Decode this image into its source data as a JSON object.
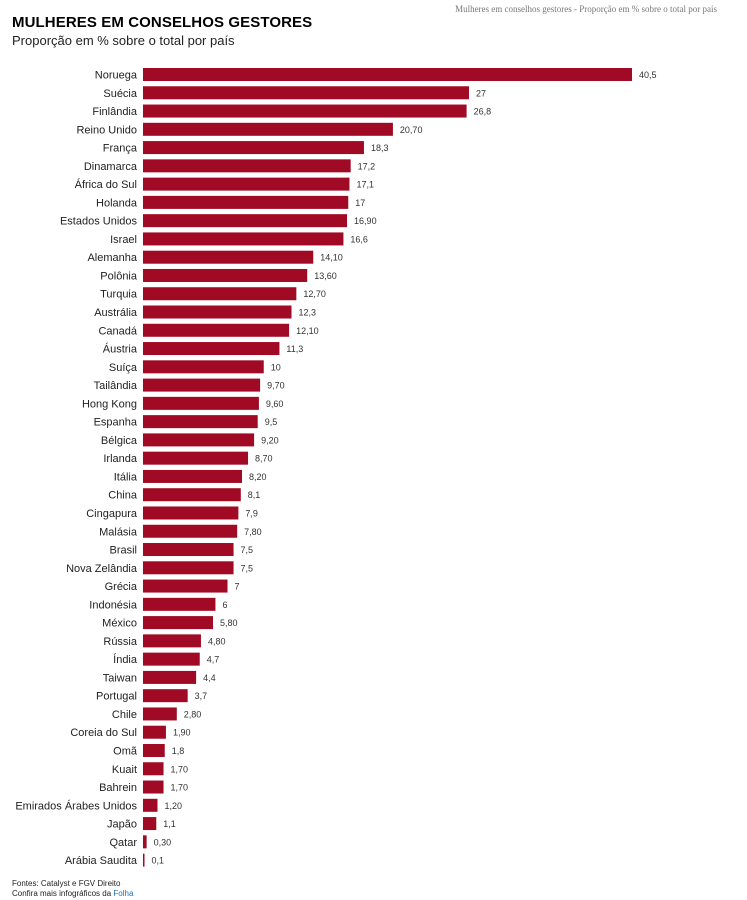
{
  "header": {
    "title": "MULHERES EM CONSELHOS GESTORES",
    "subtitle": "Proporção em % sobre o total por país",
    "top_caption": "Mulheres em conselhos gestores - Proporção em % sobre o total por país"
  },
  "footer": {
    "sources": "Fontes: Catalyst e FGV Direito",
    "more_prefix": "Confira mais infográficos da",
    "more_link": "Folha"
  },
  "colors": {
    "bar": "#a00a25"
  },
  "chart_data": {
    "type": "bar",
    "orientation": "horizontal",
    "title": "MULHERES EM CONSELHOS GESTORES",
    "subtitle": "Proporção em % sobre o total por país",
    "xlim": [
      0,
      40.5
    ],
    "categories": [
      "Noruega",
      "Suécia",
      "Finlândia",
      "Reino Unido",
      "França",
      "Dinamarca",
      "África do Sul",
      "Holanda",
      "Estados Unidos",
      "Israel",
      "Alemanha",
      "Polônia",
      "Turquia",
      "Austrália",
      "Canadá",
      "Áustria",
      "Suíça",
      "Tailândia",
      "Hong Kong",
      "Espanha",
      "Bélgica",
      "Irlanda",
      "Itália",
      "China",
      "Cingapura",
      "Malásia",
      "Brasil",
      "Nova Zelândia",
      "Grécia",
      "Indonésia",
      "México",
      "Rússia",
      "Índia",
      "Taiwan",
      "Portugal",
      "Chile",
      "Coreia do Sul",
      "Omã",
      "Kuait",
      "Bahrein",
      "Emirados Árabes Unidos",
      "Japão",
      "Qatar",
      "Arábia Saudita"
    ],
    "values": [
      40.5,
      27,
      26.8,
      20.7,
      18.3,
      17.2,
      17.1,
      17,
      16.9,
      16.6,
      14.1,
      13.6,
      12.7,
      12.3,
      12.1,
      11.3,
      10,
      9.7,
      9.6,
      9.5,
      9.2,
      8.7,
      8.2,
      8.1,
      7.9,
      7.8,
      7.5,
      7.5,
      7,
      6,
      5.8,
      4.8,
      4.7,
      4.4,
      3.7,
      2.8,
      1.9,
      1.8,
      1.7,
      1.7,
      1.2,
      1.1,
      0.3,
      0.1
    ],
    "value_labels": [
      "40,5",
      "27",
      "26,8",
      "20,70",
      "18,3",
      "17,2",
      "17,1",
      "17",
      "16,90",
      "16,6",
      "14,10",
      "13,60",
      "12,70",
      "12,3",
      "12,10",
      "11,3",
      "10",
      "9,70",
      "9,60",
      "9,5",
      "9,20",
      "8,70",
      "8,20",
      "8,1",
      "7,9",
      "7,80",
      "7,5",
      "7,5",
      "7",
      "6",
      "5,80",
      "4,80",
      "4,7",
      "4,4",
      "3,7",
      "2,80",
      "1,90",
      "1,8",
      "1,70",
      "1,70",
      "1,20",
      "1,1",
      "0,30",
      "0,1"
    ]
  }
}
